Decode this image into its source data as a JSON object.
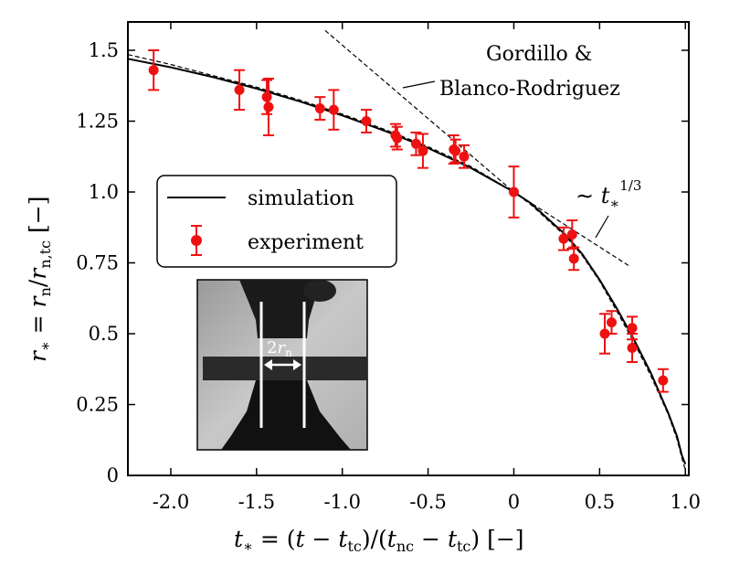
{
  "chart_data": {
    "type": "scatter",
    "title": "",
    "xlabel": "t* = (t − ttc)/(tnc − ttc) [−]",
    "ylabel": "r* = rn/rn,tc [−]",
    "xlim": [
      -2.25,
      1.02
    ],
    "ylim": [
      0,
      1.6
    ],
    "xticks": [
      -2.0,
      -1.5,
      -1.0,
      -0.5,
      0,
      0.5,
      1.0
    ],
    "xtick_labels": [
      "-2.0",
      "-1.5",
      "-1.0",
      "-0.5",
      "0",
      "0.5",
      "1.0"
    ],
    "yticks": [
      0,
      0.25,
      0.5,
      0.75,
      1.0,
      1.25,
      1.5
    ],
    "ytick_labels": [
      "0",
      "0.25",
      "0.5",
      "0.75",
      "1.0",
      "1.25",
      "1.5"
    ],
    "grid": false,
    "legend_position": "middle-left",
    "series": [
      {
        "name": "simulation",
        "kind": "line",
        "color": "#000000",
        "x": [
          -2.25,
          -2.0,
          -1.75,
          -1.5,
          -1.25,
          -1.0,
          -0.75,
          -0.5,
          -0.25,
          0.0,
          0.1,
          0.2,
          0.3,
          0.4,
          0.5,
          0.6,
          0.7,
          0.8,
          0.9,
          0.95,
          0.98,
          1.0
        ],
        "y": [
          1.47,
          1.44,
          1.405,
          1.365,
          1.32,
          1.27,
          1.215,
          1.155,
          1.085,
          1.0,
          0.96,
          0.905,
          0.85,
          0.78,
          0.69,
          0.59,
          0.48,
          0.36,
          0.22,
          0.14,
          0.07,
          0.04
        ]
      },
      {
        "name": "",
        "kind": "dashed",
        "color": "#000000",
        "x": [
          -2.25,
          -2.0,
          -1.75,
          -1.5,
          -1.25,
          -1.0,
          -0.75,
          -0.5,
          -0.25,
          0.0,
          0.1,
          0.2,
          0.3,
          0.4,
          0.5,
          0.6,
          0.7,
          0.8,
          0.9,
          0.95,
          0.98,
          1.0
        ],
        "y": [
          1.485,
          1.45,
          1.41,
          1.37,
          1.325,
          1.275,
          1.22,
          1.16,
          1.09,
          1.0,
          0.955,
          0.9,
          0.845,
          0.775,
          0.685,
          0.58,
          0.47,
          0.35,
          0.215,
          0.13,
          0.06,
          0.02
        ]
      },
      {
        "name": "experiment",
        "kind": "errorbar",
        "color": "#ee1111",
        "points": [
          {
            "x": -2.1,
            "y": 1.43,
            "err": 0.07
          },
          {
            "x": -1.6,
            "y": 1.36,
            "err": 0.07
          },
          {
            "x": -1.44,
            "y": 1.335,
            "err": 0.06
          },
          {
            "x": -1.43,
            "y": 1.3,
            "err": 0.1
          },
          {
            "x": -1.13,
            "y": 1.295,
            "err": 0.04
          },
          {
            "x": -1.05,
            "y": 1.29,
            "err": 0.07
          },
          {
            "x": -0.86,
            "y": 1.25,
            "err": 0.04
          },
          {
            "x": -0.69,
            "y": 1.2,
            "err": 0.04
          },
          {
            "x": -0.68,
            "y": 1.19,
            "err": 0.04
          },
          {
            "x": -0.57,
            "y": 1.17,
            "err": 0.04
          },
          {
            "x": -0.53,
            "y": 1.145,
            "err": 0.06
          },
          {
            "x": -0.35,
            "y": 1.15,
            "err": 0.05
          },
          {
            "x": -0.34,
            "y": 1.145,
            "err": 0.04
          },
          {
            "x": -0.29,
            "y": 1.125,
            "err": 0.04
          },
          {
            "x": 0.0,
            "y": 1.0,
            "err": 0.09
          },
          {
            "x": 0.29,
            "y": 0.835,
            "err": 0.04
          },
          {
            "x": 0.34,
            "y": 0.85,
            "err": 0.05
          },
          {
            "x": 0.35,
            "y": 0.765,
            "err": 0.04
          },
          {
            "x": 0.53,
            "y": 0.5,
            "err": 0.07
          },
          {
            "x": 0.57,
            "y": 0.54,
            "err": 0.04
          },
          {
            "x": 0.69,
            "y": 0.52,
            "err": 0.04
          },
          {
            "x": 0.69,
            "y": 0.45,
            "err": 0.05
          },
          {
            "x": 0.87,
            "y": 0.335,
            "err": 0.04
          }
        ]
      }
    ],
    "reference_lines": [
      {
        "label": "Gordillo & Blanco-Rodriguez",
        "x": [
          -1.1,
          0.0
        ],
        "y": [
          1.57,
          1.0
        ]
      },
      {
        "label": "~ t*^(1/3)",
        "x": [
          0.0,
          0.67
        ],
        "y": [
          1.0,
          0.74
        ]
      }
    ],
    "annotations": [
      {
        "text_line1": "Gordillo &",
        "text_line2": "Blanco-Rodriguez"
      },
      {
        "text": "∼ t*^1/3"
      }
    ],
    "inset": {
      "label": "2rn"
    }
  }
}
